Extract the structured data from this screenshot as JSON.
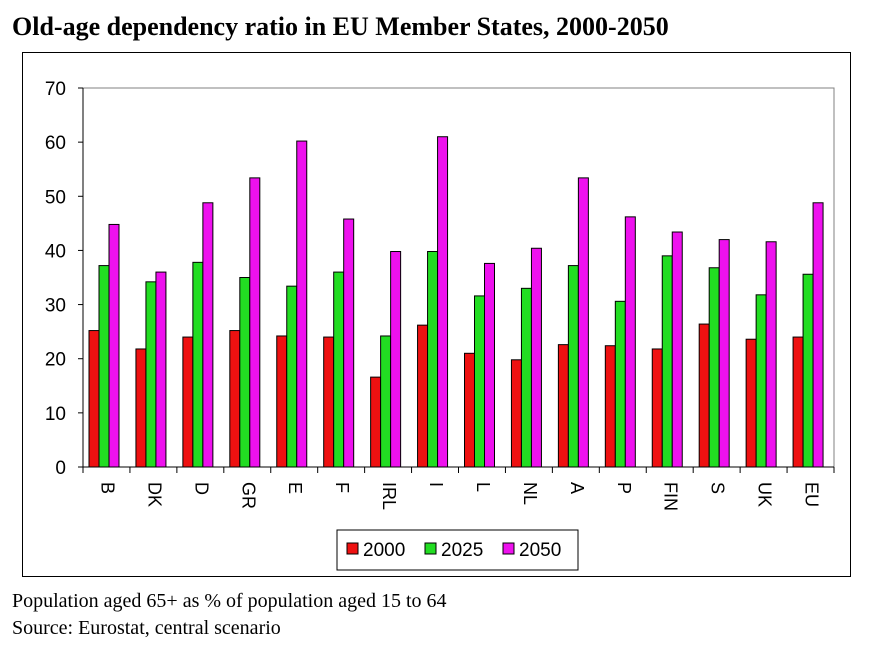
{
  "header": {
    "title": "Old-age dependency ratio in EU Member States, 2000-2050"
  },
  "notes": {
    "population": "Population aged 65+ as % of population aged 15 to 64",
    "source": "Source: Eurostat, central scenario"
  },
  "chart_data": {
    "type": "bar",
    "title": "Old-age dependency ratio in EU Member States, 2000-2050",
    "xlabel": "",
    "ylabel": "",
    "ylim": [
      0,
      70
    ],
    "yticks": [
      0,
      10,
      20,
      30,
      40,
      50,
      60,
      70
    ],
    "grid": false,
    "legend_position": "bottom",
    "categories": [
      "B",
      "DK",
      "D",
      "GR",
      "E",
      "F",
      "IRL",
      "I",
      "L",
      "NL",
      "A",
      "P",
      "FIN",
      "S",
      "UK",
      "EU"
    ],
    "series": [
      {
        "name": "2000",
        "color": "#ee1111",
        "values": [
          25.2,
          21.8,
          24.0,
          25.2,
          24.2,
          24.0,
          16.6,
          26.2,
          21.0,
          19.8,
          22.6,
          22.4,
          21.8,
          26.4,
          23.6,
          24.0
        ]
      },
      {
        "name": "2025",
        "color": "#22dd22",
        "values": [
          37.2,
          34.2,
          37.8,
          35.0,
          33.4,
          36.0,
          24.2,
          39.8,
          31.6,
          33.0,
          37.2,
          30.6,
          39.0,
          36.8,
          31.8,
          35.6
        ]
      },
      {
        "name": "2050",
        "color": "#ee11ee",
        "values": [
          44.8,
          36.0,
          48.8,
          53.4,
          60.2,
          45.8,
          39.8,
          61.0,
          37.6,
          40.4,
          53.4,
          46.2,
          43.4,
          42.0,
          41.6,
          48.8
        ]
      }
    ]
  }
}
